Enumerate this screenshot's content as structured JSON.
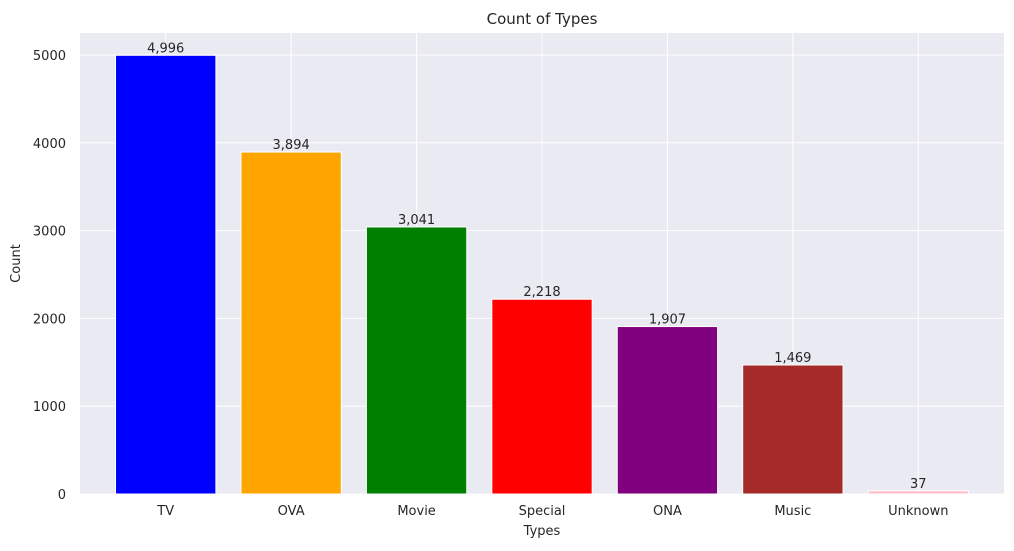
{
  "chart_data": {
    "type": "bar",
    "title": "Count of Types",
    "xlabel": "Types",
    "ylabel": "Count",
    "categories": [
      "TV",
      "OVA",
      "Movie",
      "Special",
      "ONA",
      "Music",
      "Unknown"
    ],
    "values": [
      4996,
      3894,
      3041,
      2218,
      1907,
      1469,
      37
    ],
    "value_labels": [
      "4,996",
      "3,894",
      "3,041",
      "2,218",
      "1,907",
      "1,469",
      "37"
    ],
    "colors": [
      "#0000ff",
      "#ffa500",
      "#008000",
      "#ff0000",
      "#800080",
      "#a52a2a",
      "#ffc0cb"
    ],
    "ylim": [
      0,
      5250
    ],
    "yticks": [
      0,
      1000,
      2000,
      3000,
      4000,
      5000
    ],
    "grid": true,
    "background": "#eaeaf2",
    "grid_color": "#ffffff"
  }
}
